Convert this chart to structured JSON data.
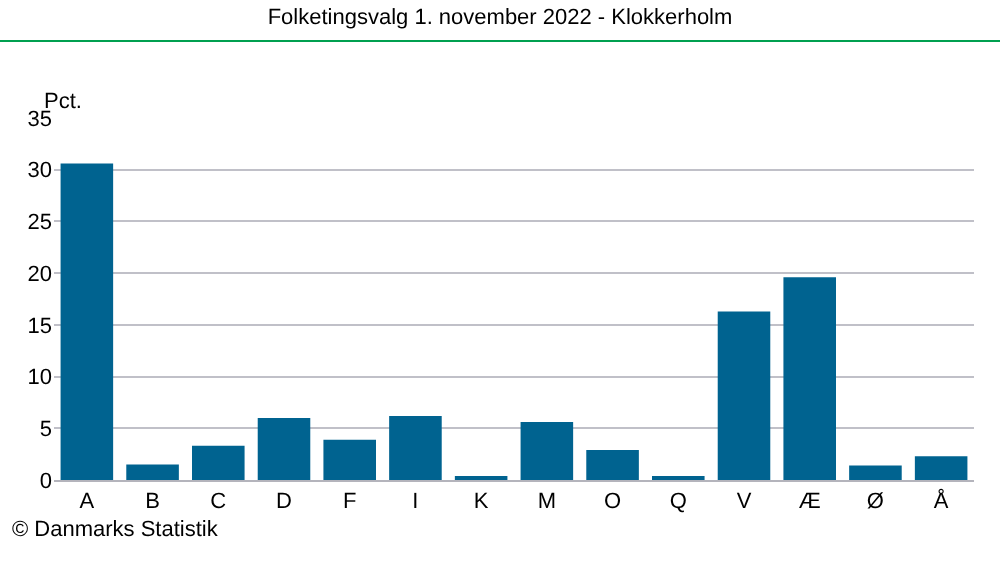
{
  "chart_data": {
    "type": "bar",
    "title": "Folketingsvalg 1. november 2022 - Klokkerholm",
    "ylabel": "Pct.",
    "categories": [
      "A",
      "B",
      "C",
      "D",
      "F",
      "I",
      "K",
      "M",
      "O",
      "Q",
      "V",
      "Æ",
      "Ø",
      "Å"
    ],
    "values": [
      30.6,
      1.5,
      3.3,
      6.0,
      3.9,
      6.2,
      0.2,
      5.6,
      2.9,
      0.2,
      16.3,
      19.6,
      1.4,
      2.3
    ],
    "color": "#006390",
    "ylim": [
      0,
      35
    ],
    "yticks": [
      0,
      5,
      10,
      15,
      20,
      25,
      30,
      35
    ],
    "grid": "y",
    "legend": false,
    "annotations": [
      "© Danmarks Statistik"
    ]
  }
}
